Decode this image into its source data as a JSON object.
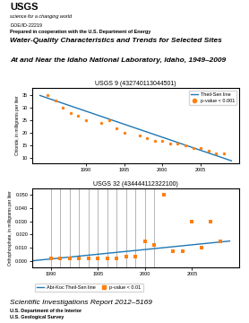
{
  "annotations": [
    "USGS",
    "science for a changing world",
    "DOE/ID-22219",
    "Prepared in cooperation with the U.S. Department of Energy",
    "Water-Quality Characteristics and Trends for Selected Sites",
    "At and Near the Idaho National Laboratory, Idaho, 1949–2009",
    "Scientific Investigations Report 2012–5169",
    "U.S. Department of the Interior",
    "U.S. Geological Survey"
  ],
  "chart_data": [
    {
      "type": "scatter",
      "title": "USGS 9 (432740113044501)",
      "ylabel": "Chloride, in milligrams per liter",
      "series": [
        {
          "name": "Theil-Sen line",
          "type": "line",
          "x": [
            1984,
            2009
          ],
          "values": [
            35,
            9
          ]
        },
        {
          "name": "p-value < 0.001",
          "type": "scatter",
          "marker": "circle",
          "x": [
            1985,
            1986,
            1987,
            1988,
            1989,
            1990,
            1992,
            1993,
            1994,
            1995,
            1997,
            1998,
            1999,
            2000,
            2001,
            2002,
            2003,
            2004,
            2005,
            2006,
            2007,
            2008
          ],
          "values": [
            35,
            33,
            30,
            28,
            27,
            25,
            24,
            25,
            22,
            20,
            19,
            18,
            17,
            17,
            16,
            16,
            15,
            14,
            14,
            13,
            12,
            12
          ]
        }
      ],
      "xlim": [
        1983,
        2010
      ],
      "ylim": [
        8,
        38
      ],
      "xticks": [
        1990,
        1995,
        2000,
        2005
      ],
      "yticks": [
        10,
        15,
        20,
        25,
        30,
        35
      ],
      "legend": "upper right"
    },
    {
      "type": "scatter",
      "title": "USGS 32 (434444112322100)",
      "ylabel": "Orthophosphate, in milligrams per liter",
      "series": [
        {
          "name": "Abt-Koc Theil-Sen line",
          "type": "line",
          "x": [
            1988,
            2009
          ],
          "values": [
            0.0,
            0.015
          ]
        },
        {
          "name": "p-value < 0.01",
          "type": "scatter",
          "marker": "square",
          "x": [
            1990,
            1991,
            1992,
            1993,
            1994,
            1995,
            1996,
            1997,
            1998,
            1999,
            2000,
            2001,
            2002,
            2003,
            2004,
            2005,
            2006,
            2007,
            2008
          ],
          "values": [
            0.002,
            0.002,
            0.002,
            0.002,
            0.002,
            0.002,
            0.002,
            0.002,
            0.003,
            0.003,
            0.015,
            0.012,
            0.05,
            0.007,
            0.007,
            0.03,
            0.01,
            0.03,
            0.015
          ]
        }
      ],
      "censored_x": [
        1990,
        1991,
        1992,
        1993,
        1994,
        1995,
        1996,
        1997,
        1998,
        1999,
        2000,
        2001
      ],
      "xlim": [
        1988,
        2010
      ],
      "ylim": [
        -0.005,
        0.055
      ],
      "xticks": [
        1990,
        1995,
        2000,
        2005
      ],
      "yticks": [
        {
          "value": 0.0,
          "label": "0.000"
        },
        {
          "value": 0.01,
          "label": "0.010"
        },
        {
          "value": 0.02,
          "label": "0.020"
        },
        {
          "value": 0.03,
          "label": "0.030"
        },
        {
          "value": 0.04,
          "label": "0.040"
        },
        {
          "value": 0.05,
          "label": "0.050"
        }
      ],
      "legend": "upper left"
    }
  ]
}
